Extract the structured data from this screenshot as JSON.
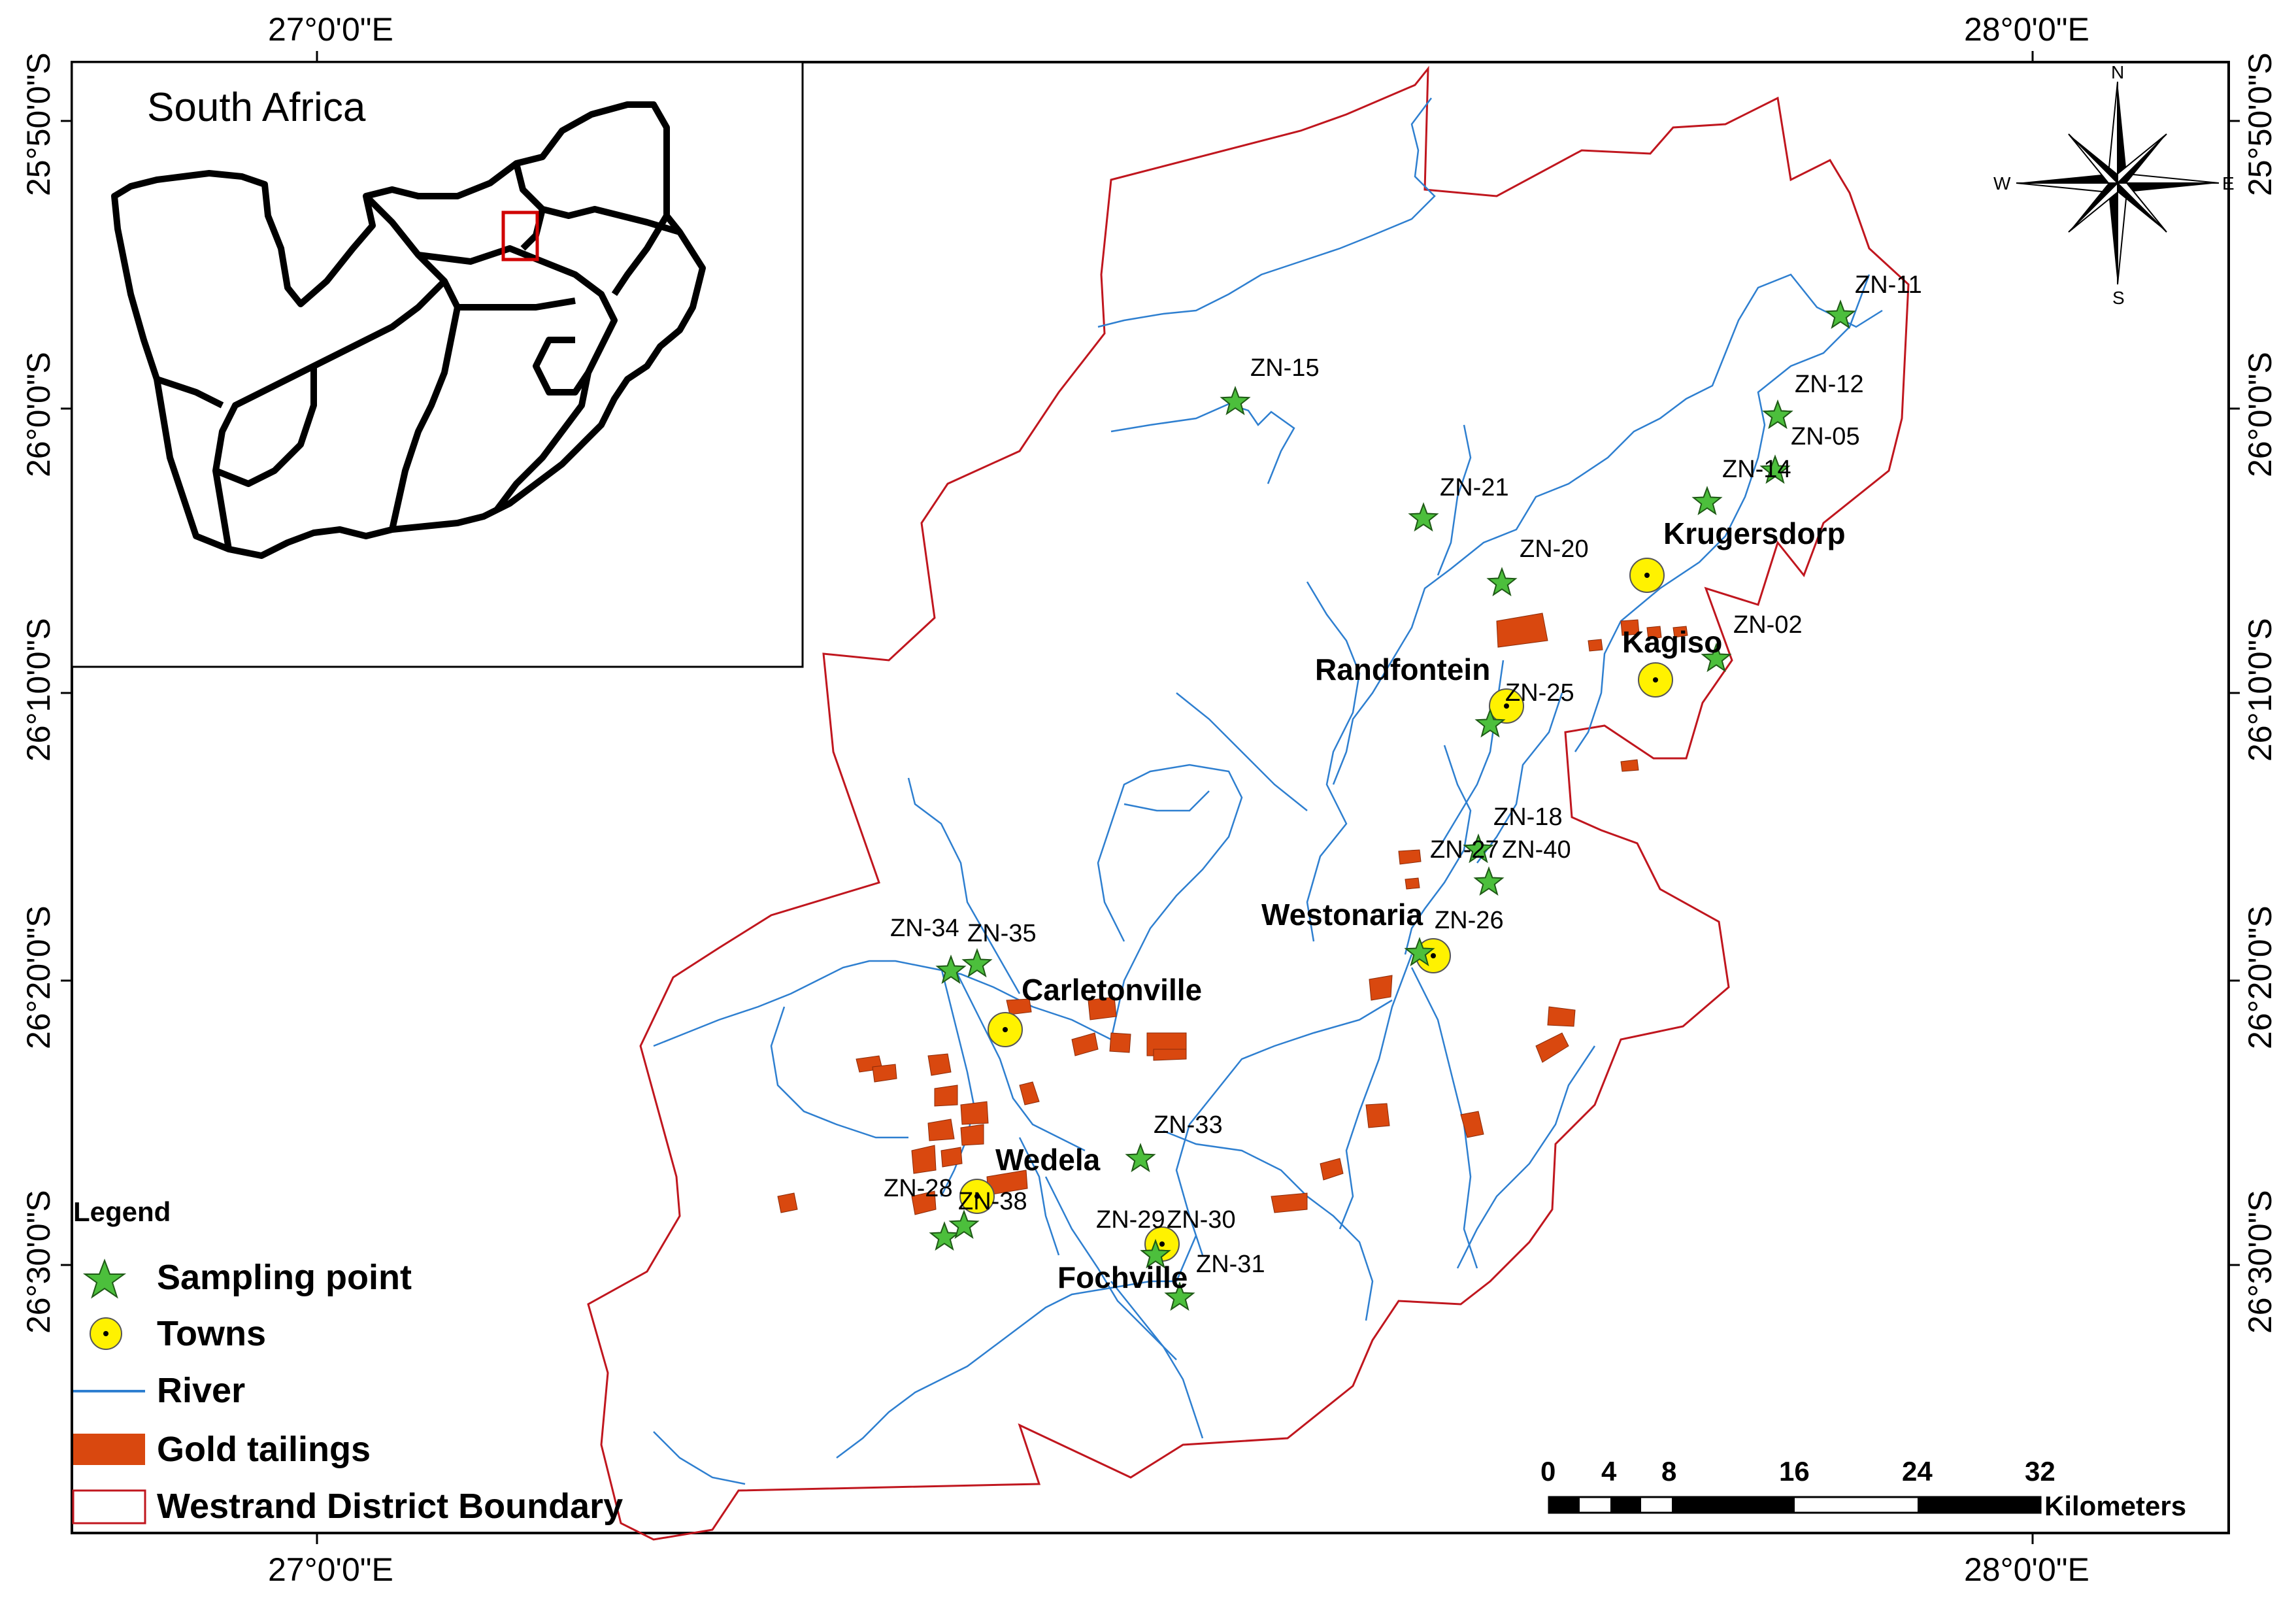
{
  "map": {
    "inset_title": "South Africa",
    "coords": {
      "top_left_lon": "27°0'0\"E",
      "top_right_lon": "28°0'0\"E",
      "bottom_left_lon": "27°0'0\"E",
      "bottom_right_lon": "28°0'0\"E",
      "lat_25_50": "25°50'0\"S",
      "lat_26_00": "26°0'0\"S",
      "lat_26_10": "26°10'0\"S",
      "lat_26_20": "26°20'0\"S",
      "lat_26_30": "26°30'0\"S"
    },
    "compass": {
      "n": "N",
      "s": "S",
      "e": "E",
      "w": "W"
    },
    "sites": [
      {
        "id": "ZN-11",
        "label": "ZN-11"
      },
      {
        "id": "ZN-15",
        "label": "ZN-15"
      },
      {
        "id": "ZN-12",
        "label": "ZN-12"
      },
      {
        "id": "ZN-05",
        "label": "ZN-05"
      },
      {
        "id": "ZN-14",
        "label": "ZN-14"
      },
      {
        "id": "ZN-21",
        "label": "ZN-21"
      },
      {
        "id": "ZN-20",
        "label": "ZN-20"
      },
      {
        "id": "ZN-02",
        "label": "ZN-02"
      },
      {
        "id": "ZN-25",
        "label": "ZN-25"
      },
      {
        "id": "ZN-18",
        "label": "ZN-18"
      },
      {
        "id": "ZN-27",
        "label": "ZN-27"
      },
      {
        "id": "ZN-40",
        "label": "ZN-40"
      },
      {
        "id": "ZN-26",
        "label": "ZN-26"
      },
      {
        "id": "ZN-34",
        "label": "ZN-34"
      },
      {
        "id": "ZN-35",
        "label": "ZN-35"
      },
      {
        "id": "ZN-33",
        "label": "ZN-33"
      },
      {
        "id": "ZN-28",
        "label": "ZN-28"
      },
      {
        "id": "ZN-38",
        "label": "ZN-38"
      },
      {
        "id": "ZN-29",
        "label": "ZN-29"
      },
      {
        "id": "ZN-30",
        "label": "ZN-30"
      },
      {
        "id": "ZN-31",
        "label": "ZN-31"
      }
    ],
    "towns": [
      {
        "name": "Krugersdorp"
      },
      {
        "name": "Kagiso"
      },
      {
        "name": "Randfontein"
      },
      {
        "name": "Westonaria"
      },
      {
        "name": "Carletonville"
      },
      {
        "name": "Wedela"
      },
      {
        "name": "Fochville"
      }
    ],
    "legend": {
      "title": "Legend",
      "items": [
        {
          "label": "Sampling point"
        },
        {
          "label": "Towns"
        },
        {
          "label": "River"
        },
        {
          "label": "Gold tailings"
        },
        {
          "label": "Westrand District Boundary"
        }
      ]
    },
    "scale_bar": {
      "ticks": [
        "0",
        "4",
        "8",
        "16",
        "24",
        "32"
      ],
      "unit": "Kilometers"
    },
    "colors": {
      "boundary": "#c0161e",
      "river": "#2e7fd0",
      "tailings": "#d9480f",
      "sampling_point": "#4cbf3c",
      "town": "#fff200"
    }
  }
}
